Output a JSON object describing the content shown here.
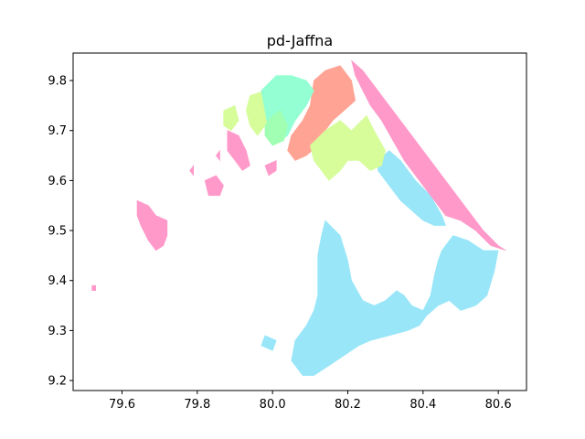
{
  "chart_data": {
    "type": "map",
    "title": "pd-Jaffna",
    "xlabel": "",
    "ylabel": "",
    "xlim": [
      79.47,
      80.675
    ],
    "ylim": [
      9.18,
      9.855
    ],
    "x_ticks": [
      79.6,
      79.8,
      80.0,
      80.2,
      80.4,
      80.6
    ],
    "x_tick_labels": [
      "79.6",
      "79.8",
      "80.0",
      "80.2",
      "80.4",
      "80.6"
    ],
    "y_ticks": [
      9.2,
      9.3,
      9.4,
      9.5,
      9.6,
      9.7,
      9.8
    ],
    "y_tick_labels": [
      "9.2",
      "9.3",
      "9.4",
      "9.5",
      "9.6",
      "9.7",
      "9.8"
    ],
    "grid": false,
    "regions": [
      {
        "color": "#99E6F9",
        "polys": [
          [
            [
              80.14,
              9.52
            ],
            [
              80.18,
              9.49
            ],
            [
              80.2,
              9.44
            ],
            [
              80.21,
              9.4
            ],
            [
              80.24,
              9.36
            ],
            [
              80.27,
              9.35
            ],
            [
              80.3,
              9.36
            ],
            [
              80.33,
              9.38
            ],
            [
              80.35,
              9.37
            ],
            [
              80.37,
              9.35
            ],
            [
              80.4,
              9.34
            ],
            [
              80.42,
              9.37
            ],
            [
              80.43,
              9.41
            ],
            [
              80.44,
              9.44
            ],
            [
              80.45,
              9.46
            ],
            [
              80.48,
              9.49
            ],
            [
              80.52,
              9.48
            ],
            [
              80.56,
              9.46
            ],
            [
              80.6,
              9.46
            ],
            [
              80.59,
              9.42
            ],
            [
              80.57,
              9.37
            ],
            [
              80.54,
              9.35
            ],
            [
              80.5,
              9.34
            ],
            [
              80.47,
              9.36
            ],
            [
              80.44,
              9.35
            ],
            [
              80.41,
              9.33
            ],
            [
              80.39,
              9.31
            ],
            [
              80.36,
              9.3
            ],
            [
              80.31,
              9.29
            ],
            [
              80.26,
              9.28
            ],
            [
              80.23,
              9.27
            ],
            [
              80.19,
              9.25
            ],
            [
              80.15,
              9.23
            ],
            [
              80.11,
              9.21
            ],
            [
              80.08,
              9.21
            ],
            [
              80.05,
              9.24
            ],
            [
              80.06,
              9.28
            ],
            [
              80.09,
              9.31
            ],
            [
              80.11,
              9.34
            ],
            [
              80.12,
              9.37
            ],
            [
              80.12,
              9.41
            ],
            [
              80.12,
              9.45
            ],
            [
              80.13,
              9.49
            ]
          ],
          [
            [
              80.28,
              9.64
            ],
            [
              80.31,
              9.66
            ],
            [
              80.34,
              9.64
            ],
            [
              80.38,
              9.6
            ],
            [
              80.42,
              9.57
            ],
            [
              80.45,
              9.53
            ],
            [
              80.46,
              9.51
            ],
            [
              80.43,
              9.51
            ],
            [
              80.4,
              9.52
            ],
            [
              80.37,
              9.54
            ],
            [
              80.34,
              9.56
            ],
            [
              80.31,
              9.59
            ],
            [
              80.28,
              9.62
            ]
          ],
          [
            [
              79.98,
              9.29
            ],
            [
              80.01,
              9.28
            ],
            [
              80.0,
              9.26
            ],
            [
              79.97,
              9.27
            ]
          ]
        ]
      },
      {
        "color": "#FF99C9",
        "polys": [
          [
            [
              80.21,
              9.84
            ],
            [
              80.24,
              9.82
            ],
            [
              80.28,
              9.78
            ],
            [
              80.32,
              9.74
            ],
            [
              80.36,
              9.7
            ],
            [
              80.4,
              9.66
            ],
            [
              80.44,
              9.62
            ],
            [
              80.48,
              9.58
            ],
            [
              80.52,
              9.54
            ],
            [
              80.56,
              9.5
            ],
            [
              80.6,
              9.47
            ],
            [
              80.62,
              9.46
            ],
            [
              80.58,
              9.47
            ],
            [
              80.54,
              9.5
            ],
            [
              80.5,
              9.52
            ],
            [
              80.46,
              9.53
            ],
            [
              80.43,
              9.56
            ],
            [
              80.39,
              9.6
            ],
            [
              80.35,
              9.64
            ],
            [
              80.32,
              9.68
            ],
            [
              80.29,
              9.72
            ],
            [
              80.26,
              9.75
            ],
            [
              80.24,
              9.78
            ],
            [
              80.22,
              9.81
            ]
          ],
          [
            [
              79.64,
              9.56
            ],
            [
              79.67,
              9.55
            ],
            [
              79.69,
              9.53
            ],
            [
              79.72,
              9.52
            ],
            [
              79.72,
              9.49
            ],
            [
              79.71,
              9.47
            ],
            [
              79.69,
              9.46
            ],
            [
              79.67,
              9.48
            ],
            [
              79.65,
              9.51
            ],
            [
              79.64,
              9.53
            ]
          ],
          [
            [
              79.88,
              9.7
            ],
            [
              79.91,
              9.69
            ],
            [
              79.93,
              9.66
            ],
            [
              79.94,
              9.63
            ],
            [
              79.92,
              9.62
            ],
            [
              79.9,
              9.64
            ],
            [
              79.88,
              9.66
            ]
          ],
          [
            [
              79.98,
              9.63
            ],
            [
              80.01,
              9.64
            ],
            [
              80.01,
              9.62
            ],
            [
              79.99,
              9.61
            ]
          ],
          [
            [
              79.85,
              9.65
            ],
            [
              79.86,
              9.66
            ],
            [
              79.86,
              9.64
            ]
          ],
          [
            [
              79.82,
              9.6
            ],
            [
              79.85,
              9.61
            ],
            [
              79.87,
              9.59
            ],
            [
              79.86,
              9.57
            ],
            [
              79.83,
              9.57
            ]
          ],
          [
            [
              79.52,
              9.39
            ],
            [
              79.53,
              9.39
            ],
            [
              79.53,
              9.38
            ],
            [
              79.52,
              9.38
            ]
          ],
          [
            [
              79.78,
              9.62
            ],
            [
              79.79,
              9.63
            ],
            [
              79.79,
              9.61
            ]
          ]
        ]
      },
      {
        "color": "#FFA494",
        "polys": [
          [
            [
              80.11,
              9.8
            ],
            [
              80.14,
              9.82
            ],
            [
              80.18,
              9.83
            ],
            [
              80.21,
              9.8
            ],
            [
              80.22,
              9.76
            ],
            [
              80.19,
              9.74
            ],
            [
              80.16,
              9.72
            ],
            [
              80.14,
              9.7
            ],
            [
              80.12,
              9.67
            ],
            [
              80.09,
              9.65
            ],
            [
              80.06,
              9.64
            ],
            [
              80.04,
              9.66
            ],
            [
              80.05,
              9.69
            ],
            [
              80.08,
              9.72
            ],
            [
              80.1,
              9.75
            ]
          ]
        ]
      },
      {
        "color": "#D6FD9A",
        "polys": [
          [
            [
              80.1,
              9.67
            ],
            [
              80.14,
              9.7
            ],
            [
              80.18,
              9.72
            ],
            [
              80.21,
              9.7
            ],
            [
              80.25,
              9.73
            ],
            [
              80.27,
              9.7
            ],
            [
              80.3,
              9.66
            ],
            [
              80.29,
              9.63
            ],
            [
              80.26,
              9.62
            ],
            [
              80.23,
              9.64
            ],
            [
              80.2,
              9.64
            ],
            [
              80.18,
              9.62
            ],
            [
              80.15,
              9.6
            ],
            [
              80.13,
              9.62
            ],
            [
              80.11,
              9.64
            ]
          ],
          [
            [
              79.87,
              9.74
            ],
            [
              79.9,
              9.75
            ],
            [
              79.91,
              9.72
            ],
            [
              79.89,
              9.7
            ],
            [
              79.87,
              9.71
            ]
          ],
          [
            [
              79.94,
              9.77
            ],
            [
              79.98,
              9.78
            ],
            [
              80.0,
              9.75
            ],
            [
              79.99,
              9.72
            ],
            [
              79.96,
              9.69
            ],
            [
              79.94,
              9.71
            ],
            [
              79.93,
              9.74
            ]
          ]
        ]
      },
      {
        "color": "#94FFD2",
        "polys": [
          [
            [
              79.97,
              9.78
            ],
            [
              80.01,
              9.81
            ],
            [
              80.05,
              9.81
            ],
            [
              80.09,
              9.8
            ],
            [
              80.11,
              9.78
            ],
            [
              80.09,
              9.75
            ],
            [
              80.06,
              9.72
            ],
            [
              80.04,
              9.69
            ],
            [
              80.02,
              9.68
            ],
            [
              79.99,
              9.7
            ],
            [
              79.98,
              9.74
            ]
          ]
        ]
      },
      {
        "color": "#A0FFB2",
        "polys": [
          [
            [
              79.98,
              9.71
            ],
            [
              80.0,
              9.73
            ],
            [
              80.02,
              9.74
            ],
            [
              80.04,
              9.71
            ],
            [
              80.03,
              9.68
            ],
            [
              80.0,
              9.67
            ],
            [
              79.98,
              9.69
            ]
          ]
        ]
      }
    ]
  }
}
